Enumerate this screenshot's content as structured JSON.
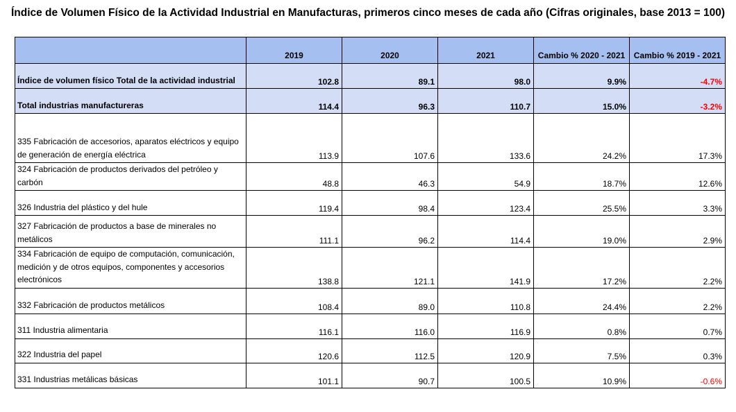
{
  "title": "Índice de Volumen Físico de la Actividad Industrial en Manufacturas, primeros cinco meses de cada año (Cifras originales, base 2013 = 100)",
  "table": {
    "headers": [
      "",
      "2019",
      "2020",
      "2021",
      "Cambio % 2020 - 2021",
      "Cambio % 2019 - 2021"
    ],
    "rows": [
      {
        "label": "Índice de volumen físico Total de la actividad industrial",
        "v2019": "102.8",
        "v2020": "89.1",
        "v2021": "98.0",
        "c2021": "9.9%",
        "c1921": "-4.7%"
      },
      {
        "label": "Total industrias manufactureras",
        "v2019": "114.4",
        "v2020": "96.3",
        "v2021": "110.7",
        "c2021": "15.0%",
        "c1921": "-3.2%"
      },
      {
        "label": "335 Fabricación de accesorios, aparatos eléctricos y equipo de generación de energía  eléctrica",
        "v2019": "113.9",
        "v2020": "107.6",
        "v2021": "133.6",
        "c2021": "24.2%",
        "c1921": "17.3%"
      },
      {
        "label": "324 Fabricación de productos derivados del petróleo y carbón",
        "v2019": "48.8",
        "v2020": "46.3",
        "v2021": "54.9",
        "c2021": "18.7%",
        "c1921": "12.6%"
      },
      {
        "label": "326 Industria del plástico y del hule",
        "v2019": "119.4",
        "v2020": "98.4",
        "v2021": "123.4",
        "c2021": "25.5%",
        "c1921": "3.3%"
      },
      {
        "label": "327 Fabricación de productos a base de minerales no metálicos",
        "v2019": "111.1",
        "v2020": "96.2",
        "v2021": "114.4",
        "c2021": "19.0%",
        "c1921": "2.9%"
      },
      {
        "label": "334 Fabricación de equipo de computación, comunicación, medición  y de  otros equipos, componentes y accesorios electrónicos",
        "v2019": "138.8",
        "v2020": "121.1",
        "v2021": "141.9",
        "c2021": "17.2%",
        "c1921": "2.2%"
      },
      {
        "label": "332 Fabricación de productos metálicos",
        "v2019": "108.4",
        "v2020": "89.0",
        "v2021": "110.8",
        "c2021": "24.4%",
        "c1921": "2.2%"
      },
      {
        "label": "311 Industria alimentaria",
        "v2019": "116.1",
        "v2020": "116.0",
        "v2021": "116.9",
        "c2021": "0.8%",
        "c1921": "0.7%"
      },
      {
        "label": "322 Industria del papel",
        "v2019": "120.6",
        "v2020": "112.5",
        "v2021": "120.9",
        "c2021": "7.5%",
        "c1921": "0.3%"
      },
      {
        "label": "331 Industrias metálicas básicas",
        "v2019": "101.1",
        "v2020": "90.7",
        "v2021": "100.5",
        "c2021": "10.9%",
        "c1921": "-0.6%"
      }
    ]
  },
  "colors": {
    "header_bg": "#a4bff0",
    "summary_bg": "#d3def6",
    "negative": "#ff0000"
  }
}
